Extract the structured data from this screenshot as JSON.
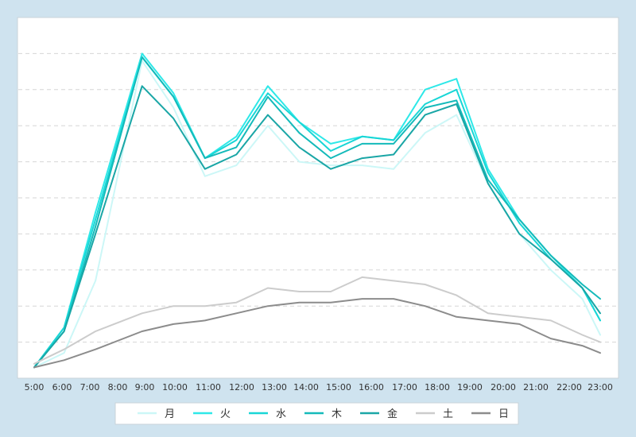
{
  "chart_data": {
    "type": "line",
    "title": "",
    "xlabel": "",
    "ylabel": "",
    "categories": [
      "5:00",
      "6:00",
      "7:00",
      "8:00",
      "9:00",
      "10:00",
      "11:00",
      "12:00",
      "13:00",
      "14:00",
      "15:00",
      "16:00",
      "17:00",
      "18:00",
      "19:00",
      "20:00",
      "21:00",
      "22:00",
      "23:00"
    ],
    "x": [
      5.0,
      5.95,
      6.95,
      8.43,
      9.43,
      10.43,
      11.43,
      12.43,
      13.43,
      14.43,
      15.43,
      16.43,
      17.43,
      18.43,
      19.43,
      20.43,
      21.43,
      22.43,
      23.0
    ],
    "ylim": [
      0,
      100
    ],
    "gridlines": [
      10,
      20,
      30,
      40,
      50,
      60,
      70,
      80,
      90
    ],
    "grid": true,
    "y_tick_labels_shown": false,
    "legend_position": "bottom",
    "series": [
      {
        "name": "月",
        "color": "#ccf7f7",
        "values": [
          3,
          7,
          27,
          88,
          75,
          56,
          59,
          70,
          60,
          59,
          59,
          58,
          68,
          73,
          54,
          40,
          30,
          22,
          12
        ]
      },
      {
        "name": "火",
        "color": "#2ee8e8",
        "values": [
          3,
          14,
          46,
          90,
          79,
          61,
          67,
          81,
          71,
          65,
          67,
          66,
          80,
          83,
          58,
          44,
          34,
          25,
          16
        ]
      },
      {
        "name": "水",
        "color": "#18d6d6",
        "values": [
          3,
          14,
          44,
          89,
          78,
          61,
          66,
          79,
          71,
          63,
          67,
          66,
          76,
          80,
          57,
          43,
          33,
          25,
          16
        ]
      },
      {
        "name": "木",
        "color": "#14baba",
        "values": [
          3,
          13,
          42,
          89,
          78,
          61,
          64,
          78,
          68,
          61,
          65,
          65,
          75,
          77,
          55,
          44,
          34,
          26,
          22
        ]
      },
      {
        "name": "金",
        "color": "#1aa6a6",
        "values": [
          3,
          13,
          40,
          81,
          72,
          58,
          62,
          73,
          64,
          58,
          61,
          62,
          73,
          76,
          54,
          40,
          33,
          25,
          18
        ]
      },
      {
        "name": "土",
        "color": "#cccccc",
        "values": [
          4,
          8,
          13,
          18,
          20,
          20,
          21,
          25,
          24,
          24,
          28,
          27,
          26,
          23,
          18,
          17,
          16,
          12,
          10
        ]
      },
      {
        "name": "日",
        "color": "#8c8c8c",
        "values": [
          3,
          5,
          8,
          13,
          15,
          16,
          18,
          20,
          21,
          21,
          22,
          22,
          20,
          17,
          16,
          15,
          11,
          9,
          7
        ]
      }
    ]
  }
}
